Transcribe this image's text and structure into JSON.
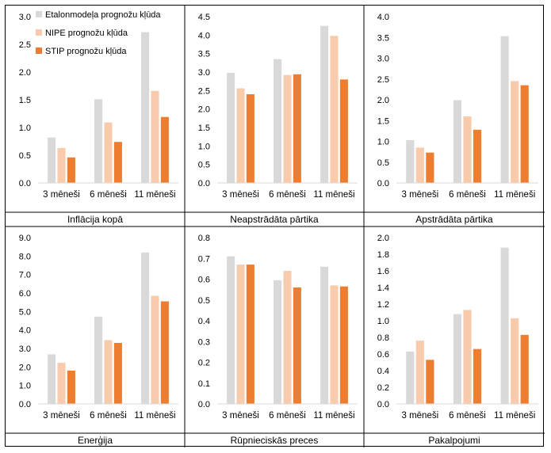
{
  "series_names": [
    "Etalonmodeļa prognožu kļūda",
    "NIPE prognožu kļūda",
    "STIP prognožu kļūda"
  ],
  "series_colors": [
    "#d9d9d9",
    "#f8cbad",
    "#ed7d31"
  ],
  "chart_data": [
    {
      "type": "bar",
      "title": "Inflācija kopā",
      "categories": [
        "3 mēneši",
        "6 mēneši",
        "11 mēneši"
      ],
      "series": [
        {
          "name": "Etalonmodeļa prognožu kļūda",
          "values": [
            0.82,
            1.51,
            2.72
          ]
        },
        {
          "name": "NIPE prognožu kļūda",
          "values": [
            0.63,
            1.09,
            1.66
          ]
        },
        {
          "name": "STIP prognožu kļūda",
          "values": [
            0.46,
            0.74,
            1.19
          ]
        }
      ],
      "ylim": [
        0,
        3.0
      ],
      "yticks": [
        "0.0",
        "0.5",
        "1.0",
        "1.5",
        "2.0",
        "2.5",
        "3.0"
      ],
      "legend": "top-left",
      "xlabel": "",
      "ylabel": ""
    },
    {
      "type": "bar",
      "title": "Neapstrādāta pārtika",
      "categories": [
        "3 mēneši",
        "6 mēneši",
        "11 mēneši"
      ],
      "series": [
        {
          "name": "Etalonmodeļa prognožu kļūda",
          "values": [
            2.98,
            3.35,
            4.25
          ]
        },
        {
          "name": "NIPE prognožu kļūda",
          "values": [
            2.56,
            2.92,
            3.98
          ]
        },
        {
          "name": "STIP prognožu kļūda",
          "values": [
            2.4,
            2.94,
            2.8
          ]
        }
      ],
      "ylim": [
        0,
        4.5
      ],
      "yticks": [
        "0.0",
        "0.5",
        "1.0",
        "1.5",
        "2.0",
        "2.5",
        "3.0",
        "3.5",
        "4.0",
        "4.5"
      ],
      "xlabel": "",
      "ylabel": ""
    },
    {
      "type": "bar",
      "title": "Apstrādāta pārtika",
      "categories": [
        "3 mēneši",
        "6 mēneši",
        "11 mēneši"
      ],
      "series": [
        {
          "name": "Etalonmodeļa prognožu kļūda",
          "values": [
            1.03,
            1.99,
            3.53
          ]
        },
        {
          "name": "NIPE prognožu kļūda",
          "values": [
            0.85,
            1.6,
            2.45
          ]
        },
        {
          "name": "STIP prognožu kļūda",
          "values": [
            0.73,
            1.28,
            2.35
          ]
        }
      ],
      "ylim": [
        0,
        4.0
      ],
      "yticks": [
        "0.0",
        "0.5",
        "1.0",
        "1.5",
        "2.0",
        "2.5",
        "3.0",
        "3.5",
        "4.0"
      ],
      "xlabel": "",
      "ylabel": ""
    },
    {
      "type": "bar",
      "title": "Enerģija",
      "categories": [
        "3 mēneši",
        "6 mēneši",
        "11 mēneši"
      ],
      "series": [
        {
          "name": "Etalonmodeļa prognožu kļūda",
          "values": [
            2.68,
            4.72,
            8.19
          ]
        },
        {
          "name": "NIPE prognožu kļūda",
          "values": [
            2.22,
            3.45,
            5.85
          ]
        },
        {
          "name": "STIP prognožu kļūda",
          "values": [
            1.8,
            3.3,
            5.55
          ]
        }
      ],
      "ylim": [
        0,
        9.0
      ],
      "yticks": [
        "0.0",
        "1.0",
        "2.0",
        "3.0",
        "4.0",
        "5.0",
        "6.0",
        "7.0",
        "8.0",
        "9.0"
      ],
      "xlabel": "",
      "ylabel": ""
    },
    {
      "type": "bar",
      "title": "Rūpnieciskās preces",
      "categories": [
        "3 mēneši",
        "6 mēneši",
        "11 mēneši"
      ],
      "series": [
        {
          "name": "Etalonmodeļa prognožu kļūda",
          "values": [
            0.71,
            0.595,
            0.66
          ]
        },
        {
          "name": "NIPE prognožu kļūda",
          "values": [
            0.67,
            0.64,
            0.57
          ]
        },
        {
          "name": "STIP prognožu kļūda",
          "values": [
            0.67,
            0.56,
            0.565
          ]
        }
      ],
      "ylim": [
        0,
        0.8
      ],
      "yticks": [
        "0.0",
        "0.1",
        "0.2",
        "0.3",
        "0.4",
        "0.5",
        "0.6",
        "0.7",
        "0.8"
      ],
      "xlabel": "",
      "ylabel": ""
    },
    {
      "type": "bar",
      "title": "Pakalpojumi",
      "categories": [
        "3 mēneši",
        "6 mēneši",
        "11 mēneši"
      ],
      "series": [
        {
          "name": "Etalonmodeļa prognožu kļūda",
          "values": [
            0.63,
            1.08,
            1.88
          ]
        },
        {
          "name": "NIPE prognožu kļūda",
          "values": [
            0.76,
            1.13,
            1.03
          ]
        },
        {
          "name": "STIP prognožu kļūda",
          "values": [
            0.53,
            0.66,
            0.83
          ]
        }
      ],
      "ylim": [
        0,
        2.0
      ],
      "yticks": [
        "0.0",
        "0.2",
        "0.4",
        "0.6",
        "0.8",
        "1.0",
        "1.2",
        "1.4",
        "1.6",
        "1.8",
        "2.0"
      ],
      "xlabel": "",
      "ylabel": ""
    }
  ]
}
